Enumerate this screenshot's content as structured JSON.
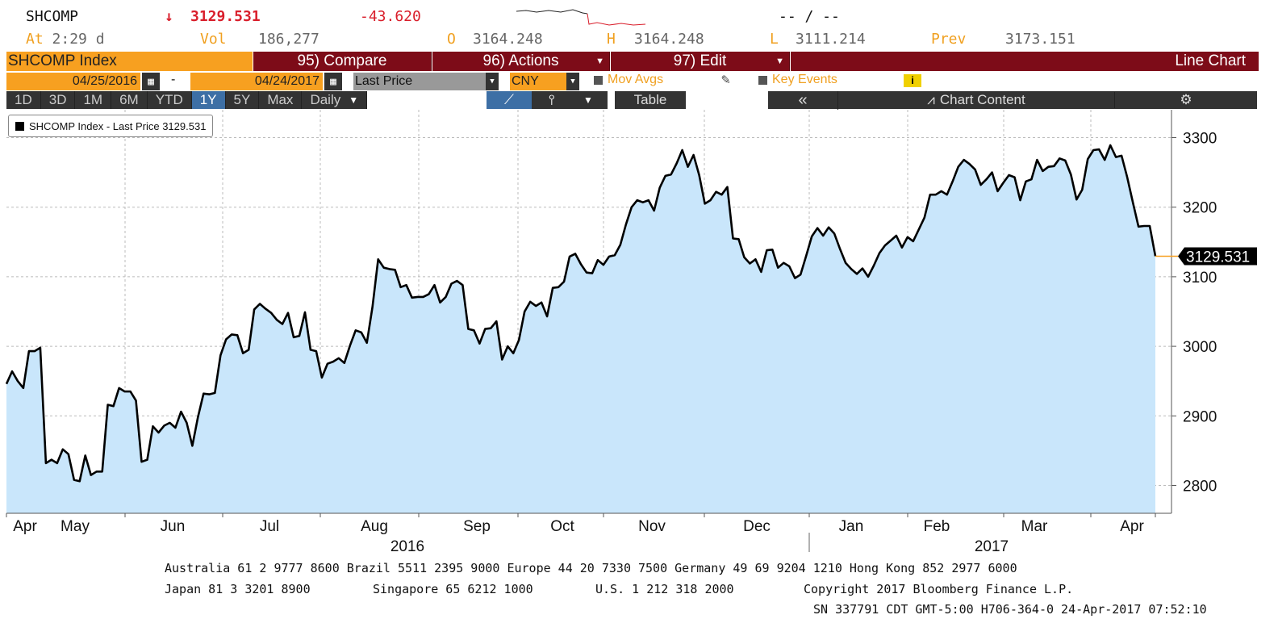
{
  "quote": {
    "ticker": "SHCOMP",
    "arrow": "↓",
    "last": "3129.531",
    "change": "-43.620",
    "time_text": "At 2:29 d",
    "at_label": "At",
    "at_time": "2:29 d",
    "vol_label": "Vol",
    "vol_value": "186,277",
    "open_label": "O",
    "open_value": "3164.248",
    "high_label": "H",
    "high_value": "3164.248",
    "low_label": "L",
    "low_value": "3111.214",
    "prev_label": "Prev",
    "prev_value": "3173.151",
    "dashes": "-- / --"
  },
  "menu": {
    "security": "SHCOMP Index",
    "compare": "95) Compare",
    "actions": "96) Actions",
    "edit": "97) Edit",
    "chart_type": "Line Chart"
  },
  "controls": {
    "start_date": "04/25/2016",
    "separator": "-",
    "end_date": "04/24/2017",
    "field": "Last Price",
    "currency": "CNY",
    "mov_avgs": "Mov Avgs",
    "key_events": "Key Events",
    "info": "i"
  },
  "range_tabs": [
    "1D",
    "3D",
    "1M",
    "6M",
    "YTD",
    "1Y",
    "5Y",
    "Max"
  ],
  "active_tab": "1Y",
  "periodicity": "Daily",
  "table_label": "Table",
  "collapse_label": "«",
  "chart_content_label": "Chart Content",
  "legend": "SHCOMP Index - Last Price 3129.531",
  "last_label": "3129.531",
  "colors": {
    "accent": "#f7a020",
    "maroon": "#7d0c18",
    "area": "#c9e6fb",
    "line": "#000000",
    "down": "#d91e2b"
  },
  "chart_data": {
    "type": "area",
    "title": "",
    "series": [
      {
        "name": "SHCOMP Index - Last Price",
        "values": [
          2946,
          2964,
          2950,
          2940,
          2993,
          2993,
          2998,
          2832,
          2837,
          2832,
          2852,
          2845,
          2808,
          2806,
          2843,
          2815,
          2820,
          2820,
          2916,
          2914,
          2940,
          2935,
          2935,
          2922,
          2834,
          2837,
          2885,
          2876,
          2886,
          2890,
          2883,
          2906,
          2890,
          2857,
          2898,
          2932,
          2931,
          2933,
          2987,
          3010,
          3017,
          3016,
          2990,
          2995,
          3053,
          3061,
          3054,
          3048,
          3038,
          3032,
          3048,
          3013,
          3015,
          3049,
          2995,
          2993,
          2955,
          2975,
          2978,
          2983,
          2976,
          3001,
          3023,
          3020,
          3005,
          3057,
          3125,
          3113,
          3111,
          3110,
          3085,
          3088,
          3070,
          3071,
          3071,
          3075,
          3088,
          3063,
          3071,
          3090,
          3094,
          3088,
          3025,
          3023,
          3004,
          3025,
          3026,
          3036,
          2981,
          3000,
          2990,
          3009,
          3050,
          3064,
          3058,
          3063,
          3043,
          3084,
          3085,
          3093,
          3129,
          3133,
          3118,
          3106,
          3105,
          3124,
          3117,
          3129,
          3131,
          3146,
          3175,
          3200,
          3210,
          3207,
          3210,
          3195,
          3228,
          3245,
          3247,
          3263,
          3282,
          3258,
          3275,
          3246,
          3205,
          3210,
          3222,
          3218,
          3229,
          3155,
          3154,
          3128,
          3119,
          3125,
          3107,
          3138,
          3139,
          3113,
          3120,
          3115,
          3098,
          3103,
          3130,
          3158,
          3170,
          3159,
          3171,
          3162,
          3140,
          3120,
          3111,
          3104,
          3112,
          3100,
          3116,
          3134,
          3145,
          3152,
          3159,
          3142,
          3157,
          3151,
          3168,
          3185,
          3218,
          3218,
          3223,
          3218,
          3237,
          3258,
          3268,
          3262,
          3254,
          3232,
          3240,
          3250,
          3223,
          3235,
          3246,
          3243,
          3210,
          3237,
          3240,
          3268,
          3252,
          3258,
          3259,
          3270,
          3267,
          3247,
          3211,
          3225,
          3269,
          3282,
          3283,
          3268,
          3289,
          3272,
          3274,
          3243,
          3207,
          3172,
          3173,
          3173,
          3129.531
        ]
      }
    ],
    "x_ticks": [
      "Apr",
      "May",
      "Jun",
      "Jul",
      "Aug",
      "Sep",
      "Oct",
      "Nov",
      "Dec",
      "Jan",
      "Feb",
      "Mar",
      "Apr"
    ],
    "years": [
      "2016",
      "2017"
    ],
    "y_ticks": [
      2800,
      2900,
      3000,
      3100,
      3200,
      3300
    ],
    "ylim": [
      2760,
      3340
    ],
    "grid": true
  },
  "footer": {
    "line1": "Australia 61 2 9777 8600 Brazil 5511 2395 9000 Europe 44 20 7330 7500 Germany 49 69 9204 1210 Hong Kong 852 2977 6000",
    "line2a": "Japan 81 3 3201 8900",
    "line2b": "Singapore 65 6212 1000",
    "line2c": "U.S. 1 212 318 2000",
    "line2d": "Copyright 2017 Bloomberg Finance L.P.",
    "line3": "SN 337791 CDT  GMT-5:00 H706-364-0 24-Apr-2017 07:52:10"
  }
}
